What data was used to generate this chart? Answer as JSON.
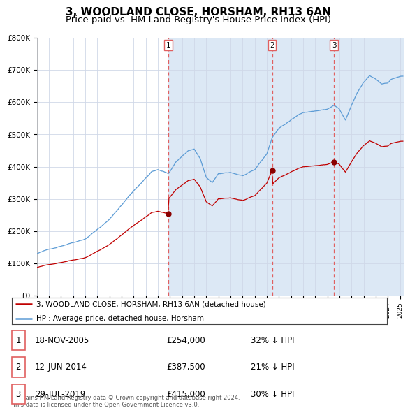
{
  "title": "3, WOODLAND CLOSE, HORSHAM, RH13 6AN",
  "subtitle": "Price paid vs. HM Land Registry's House Price Index (HPI)",
  "title_fontsize": 11,
  "subtitle_fontsize": 9.5,
  "ylim": [
    0,
    800000
  ],
  "yticks": [
    0,
    100000,
    200000,
    300000,
    400000,
    500000,
    600000,
    700000,
    800000
  ],
  "ytick_labels": [
    "£0",
    "£100K",
    "£200K",
    "£300K",
    "£400K",
    "£500K",
    "£600K",
    "£700K",
    "£800K"
  ],
  "hpi_color": "#5b9bd5",
  "price_color": "#c00000",
  "purchase_marker_color": "#8b0000",
  "vline_color": "#e06060",
  "grid_color": "#d0d8e8",
  "background_color": "#dce8f5",
  "chart_white_bg": "#ffffff",
  "legend_label_price": "3, WOODLAND CLOSE, HORSHAM, RH13 6AN (detached house)",
  "legend_label_hpi": "HPI: Average price, detached house, Horsham",
  "transactions": [
    {
      "label": "1",
      "date": "18-NOV-2005",
      "price": 254000,
      "pct": "32% ↓ HPI",
      "x_year": 2005.88
    },
    {
      "label": "2",
      "date": "12-JUN-2014",
      "price": 387500,
      "pct": "21% ↓ HPI",
      "x_year": 2014.44
    },
    {
      "label": "3",
      "date": "29-JUL-2019",
      "price": 415000,
      "pct": "30% ↓ HPI",
      "x_year": 2019.56
    }
  ],
  "footer_line1": "Contains HM Land Registry data © Crown copyright and database right 2024.",
  "footer_line2": "This data is licensed under the Open Government Licence v3.0.",
  "xlim_left": 1995.0,
  "xlim_right": 2025.3
}
